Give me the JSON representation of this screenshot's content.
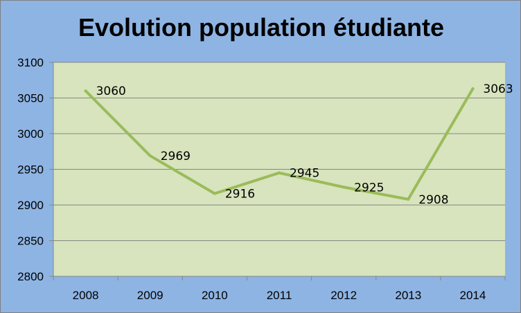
{
  "chart_data": {
    "type": "line",
    "title": "Evolution population étudiante",
    "categories": [
      "2008",
      "2009",
      "2010",
      "2011",
      "2012",
      "2013",
      "2014"
    ],
    "series": [
      {
        "values": [
          3060,
          2969,
          2916,
          2945,
          2925,
          2908,
          3063
        ]
      }
    ],
    "data_labels": [
      "3060",
      "2969",
      "2916",
      "2945",
      "2925",
      "2908",
      "3063"
    ],
    "y_ticks": [
      "2800",
      "2850",
      "2900",
      "2950",
      "3000",
      "3050",
      "3100"
    ],
    "ylim": [
      2800,
      3100
    ],
    "grid": true,
    "legend": "none",
    "colors": {
      "background": "#8eb4e3",
      "plot_area": "#d7e4bd",
      "line": "#9bbb59",
      "gridline": "#868686",
      "axis": "#868686"
    }
  }
}
